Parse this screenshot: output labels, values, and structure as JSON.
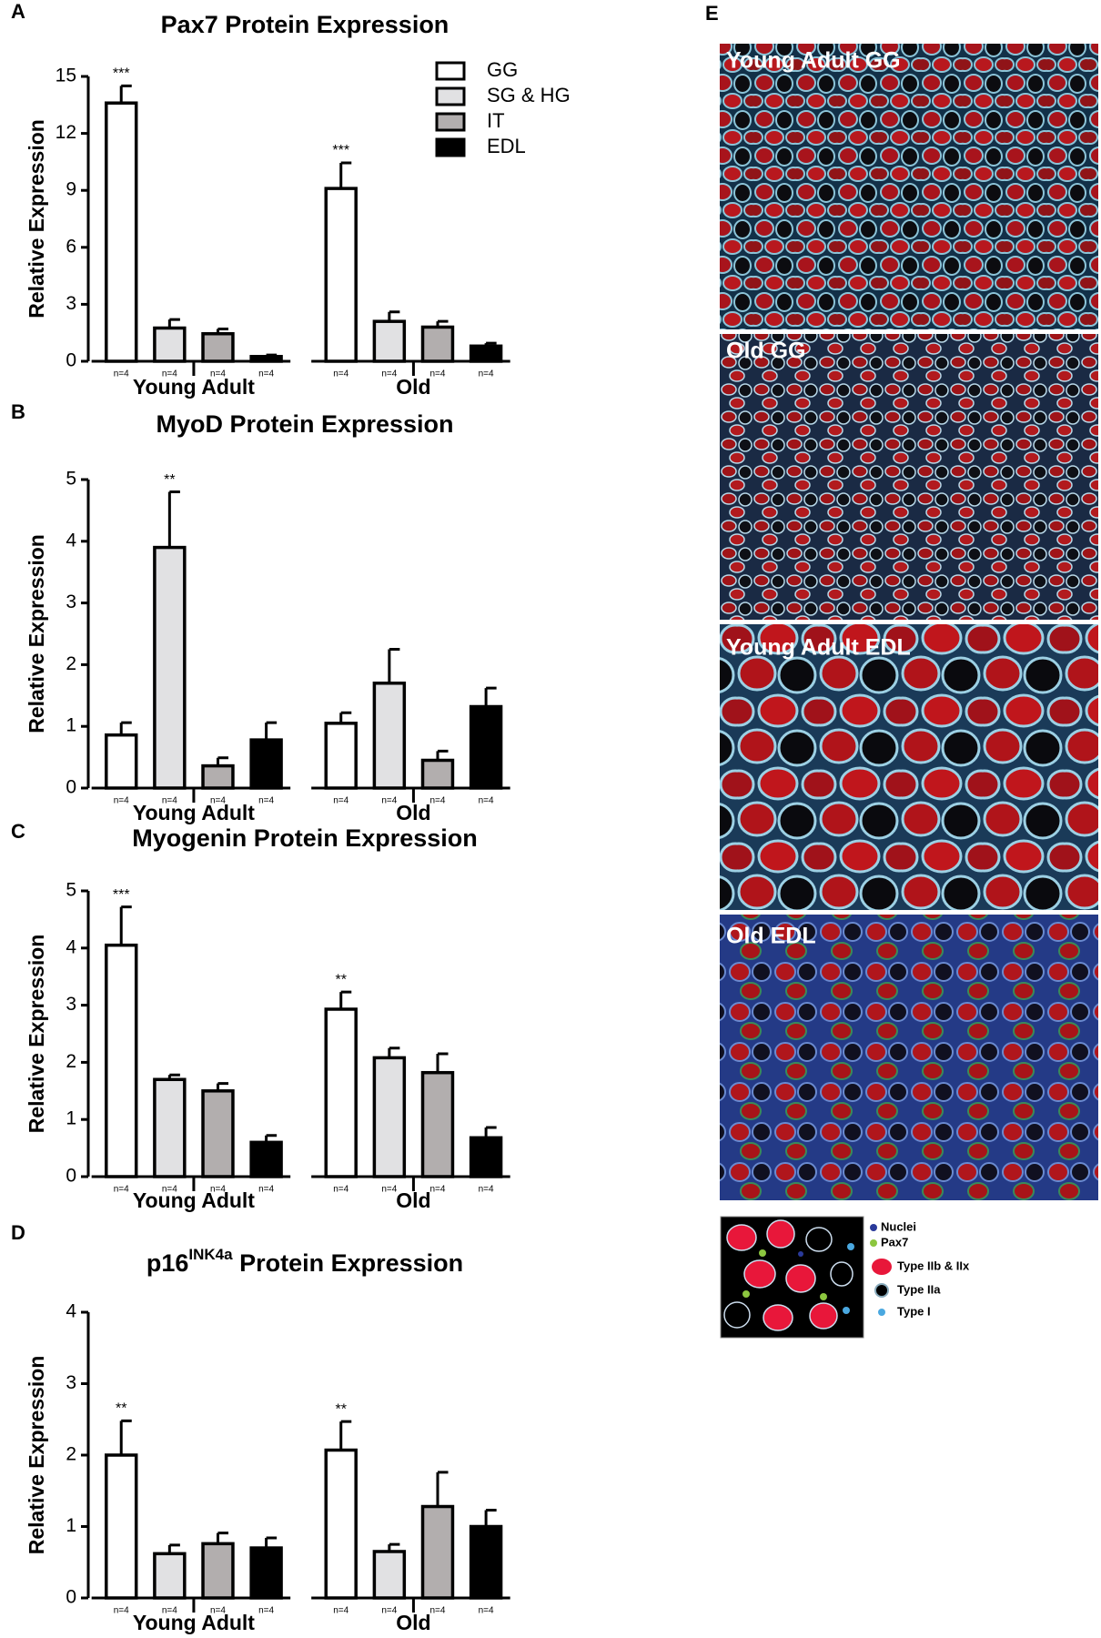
{
  "chart_data": [
    {
      "type": "bar",
      "panel": "A",
      "title": "Pax7 Protein Expression",
      "ylabel": "Relative Expression",
      "categories": [
        "Young Adult",
        "Old"
      ],
      "ylim": [
        0,
        15
      ],
      "yticks": [
        0,
        3,
        6,
        9,
        12,
        15
      ],
      "legend": "top-right",
      "series": [
        {
          "name": "GG",
          "color": "#ffffff",
          "values": [
            13.6,
            9.1
          ],
          "errors": [
            0.9,
            1.35
          ],
          "annotations": [
            "***",
            "***"
          ],
          "sample_labels": [
            "n=4",
            "n=4"
          ]
        },
        {
          "name": "SG & HG",
          "color": "#e1e1e3",
          "values": [
            1.75,
            2.1
          ],
          "errors": [
            0.45,
            0.5
          ],
          "annotations": [
            null,
            null
          ],
          "sample_labels": [
            "n=4",
            "n=4"
          ]
        },
        {
          "name": "IT",
          "color": "#b2aeae",
          "values": [
            1.45,
            1.8
          ],
          "errors": [
            0.25,
            0.3
          ],
          "annotations": [
            null,
            null
          ],
          "sample_labels": [
            "n=4",
            "n=4"
          ]
        },
        {
          "name": "EDL",
          "color": "#000000",
          "values": [
            0.25,
            0.8
          ],
          "errors": [
            0.08,
            0.15
          ],
          "annotations": [
            null,
            null
          ],
          "sample_labels": [
            "n=4",
            "n=4"
          ]
        }
      ]
    },
    {
      "type": "bar",
      "panel": "B",
      "title": "MyoD Protein Expression",
      "ylabel": "Relative Expression",
      "categories": [
        "Young Adult",
        "Old"
      ],
      "ylim": [
        0,
        5
      ],
      "yticks": [
        0,
        1,
        2,
        3,
        4,
        5
      ],
      "series": [
        {
          "color": "#ffffff",
          "values": [
            0.86,
            1.05
          ],
          "errors": [
            0.2,
            0.17
          ],
          "annotations": [
            null,
            null
          ],
          "sample_labels": [
            "n=4",
            "n=4"
          ]
        },
        {
          "color": "#e1e1e3",
          "values": [
            3.9,
            1.7
          ],
          "errors": [
            0.9,
            0.55
          ],
          "annotations": [
            "**",
            null
          ],
          "sample_labels": [
            "n=4",
            "n=4"
          ]
        },
        {
          "color": "#b2aeae",
          "values": [
            0.36,
            0.45
          ],
          "errors": [
            0.13,
            0.15
          ],
          "annotations": [
            null,
            null
          ],
          "sample_labels": [
            "n=4",
            "n=4"
          ]
        },
        {
          "color": "#000000",
          "values": [
            0.78,
            1.32
          ],
          "errors": [
            0.28,
            0.3
          ],
          "annotations": [
            null,
            null
          ],
          "sample_labels": [
            "n=4",
            "n=4"
          ]
        }
      ]
    },
    {
      "type": "bar",
      "panel": "C",
      "title": "Myogenin Protein Expression",
      "ylabel": "Relative Expression",
      "categories": [
        "Young Adult",
        "Old"
      ],
      "ylim": [
        0,
        5
      ],
      "yticks": [
        0,
        1,
        2,
        3,
        4,
        5
      ],
      "series": [
        {
          "color": "#ffffff",
          "values": [
            4.05,
            2.93
          ],
          "errors": [
            0.67,
            0.3
          ],
          "annotations": [
            "***",
            "**"
          ],
          "sample_labels": [
            "n=4",
            "n=4"
          ]
        },
        {
          "color": "#e1e1e3",
          "values": [
            1.7,
            2.08
          ],
          "errors": [
            0.08,
            0.17
          ],
          "annotations": [
            null,
            null
          ],
          "sample_labels": [
            "n=4",
            "n=4"
          ]
        },
        {
          "color": "#b2aeae",
          "values": [
            1.5,
            1.82
          ],
          "errors": [
            0.13,
            0.33
          ],
          "annotations": [
            null,
            null
          ],
          "sample_labels": [
            "n=4",
            "n=4"
          ]
        },
        {
          "color": "#000000",
          "values": [
            0.6,
            0.68
          ],
          "errors": [
            0.12,
            0.18
          ],
          "annotations": [
            null,
            null
          ],
          "sample_labels": [
            "n=4",
            "n=4"
          ]
        }
      ]
    },
    {
      "type": "bar",
      "panel": "D",
      "title": "p16",
      "title_superscript": "INK4a",
      "title_suffix": " Protein Expression",
      "ylabel": "Relative Expression",
      "categories": [
        "Young Adult",
        "Old"
      ],
      "ylim": [
        0,
        4
      ],
      "yticks": [
        0,
        1,
        2,
        3,
        4
      ],
      "series": [
        {
          "color": "#ffffff",
          "values": [
            2.0,
            2.07
          ],
          "errors": [
            0.48,
            0.4
          ],
          "annotations": [
            "**",
            "**"
          ],
          "sample_labels": [
            "n=4",
            "n=4"
          ]
        },
        {
          "color": "#e1e1e3",
          "values": [
            0.62,
            0.65
          ],
          "errors": [
            0.12,
            0.1
          ],
          "annotations": [
            null,
            null
          ],
          "sample_labels": [
            "n=4",
            "n=4"
          ]
        },
        {
          "color": "#b2aeae",
          "values": [
            0.76,
            1.28
          ],
          "errors": [
            0.15,
            0.48
          ],
          "annotations": [
            null,
            null
          ],
          "sample_labels": [
            "n=4",
            "n=4"
          ]
        },
        {
          "color": "#000000",
          "values": [
            0.7,
            1.0
          ],
          "errors": [
            0.14,
            0.23
          ],
          "annotations": [
            null,
            null
          ],
          "sample_labels": [
            "n=4",
            "n=4"
          ]
        }
      ]
    }
  ],
  "panel_e": {
    "label": "E",
    "images": [
      "Young Adult GG",
      "Old GG",
      "Young Adult EDL",
      "Old EDL"
    ],
    "legend": [
      "Nuclei",
      "Pax7",
      "Type IIb & IIx",
      "Type IIa",
      "Type I"
    ]
  }
}
